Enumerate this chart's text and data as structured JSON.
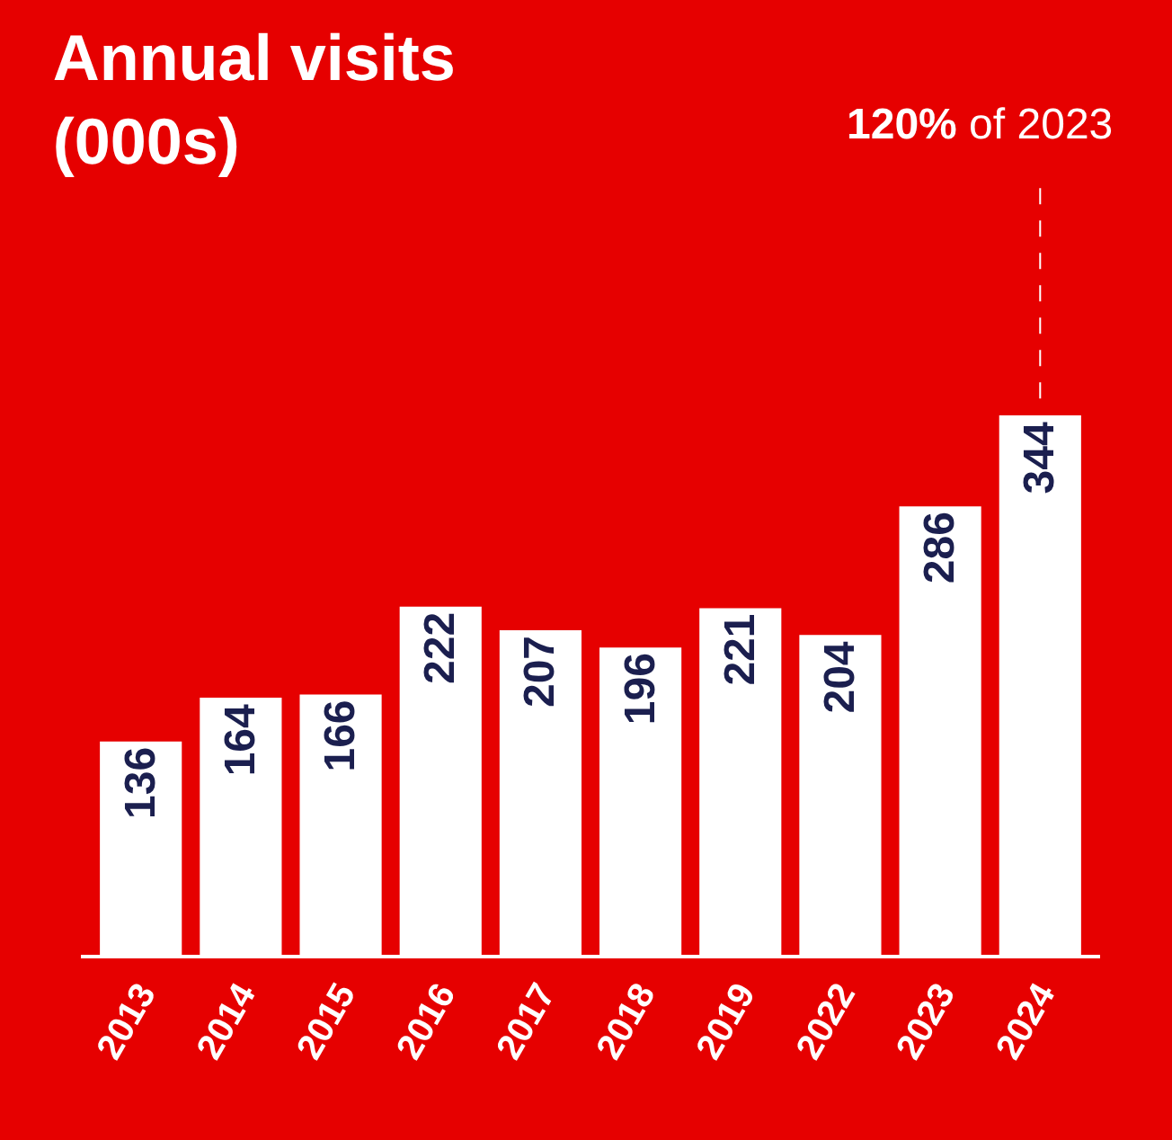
{
  "chart_data": {
    "type": "bar",
    "title": "Annual visits\n(000s)",
    "categories": [
      "2013",
      "2014",
      "2015",
      "2016",
      "2017",
      "2018",
      "2019",
      "2022",
      "2023",
      "2024"
    ],
    "values": [
      136,
      164,
      166,
      222,
      207,
      196,
      221,
      204,
      286,
      344
    ],
    "color": "#ffffff",
    "data_labels": true,
    "grid": false,
    "legend": false,
    "tick_labels": "x",
    "annotations": [
      "120% of 2023"
    ]
  }
}
